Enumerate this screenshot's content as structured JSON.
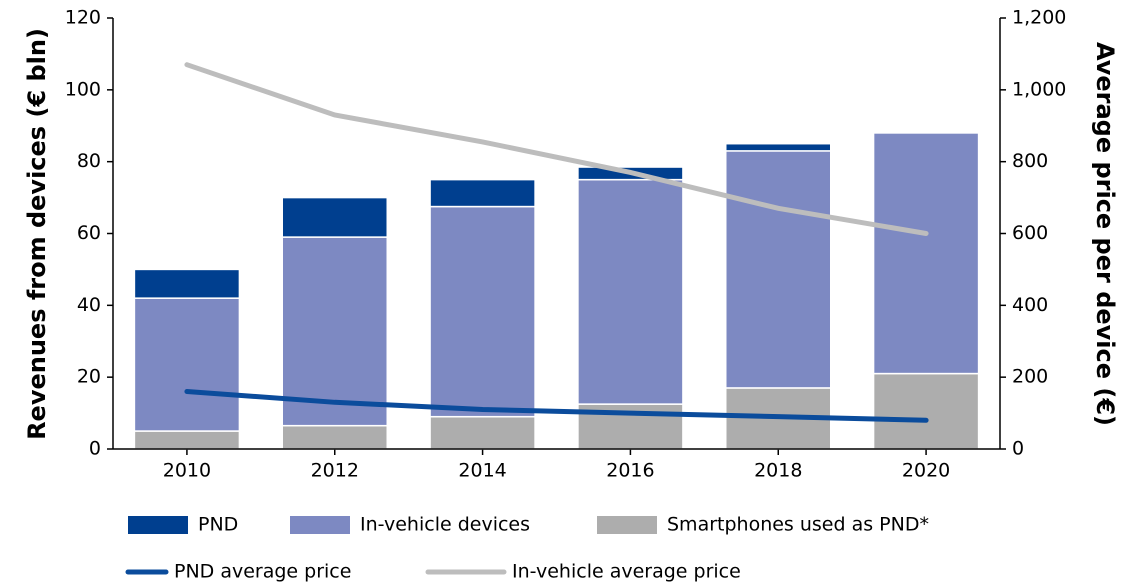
{
  "chart_data": {
    "type": "bar",
    "categories": [
      "2010",
      "2012",
      "2014",
      "2016",
      "2018",
      "2020"
    ],
    "y_label": "Revenues from devices (€ bln)",
    "y2_label": "Average price per device (€)",
    "ylim": [
      0,
      120
    ],
    "yticks": [
      0,
      20,
      40,
      60,
      80,
      100,
      120
    ],
    "y2lim": [
      0,
      1200
    ],
    "y2ticks": [
      0,
      200,
      400,
      600,
      800,
      {
        "value": 1000,
        "label": "1,000"
      },
      {
        "value": 1200,
        "label": "1,200"
      }
    ],
    "series": [
      {
        "name": "PND",
        "type": "bar",
        "color": "#003f8f",
        "values": [
          8,
          11,
          7.5,
          3.5,
          2,
          0
        ]
      },
      {
        "name": "In-vehicle devices",
        "type": "bar",
        "color": "#7d89c2",
        "values": [
          37,
          52.5,
          58.5,
          62.5,
          66,
          67
        ]
      },
      {
        "name": "Smartphones used as PND*",
        "type": "bar",
        "color": "#adadad",
        "values": [
          5,
          6.5,
          9,
          12.5,
          17,
          21
        ]
      },
      {
        "name": "PND average price",
        "type": "line",
        "axis": "y2",
        "color": "#0b4c9c",
        "values": [
          160,
          130,
          110,
          100,
          90,
          80
        ]
      },
      {
        "name": "In-vehicle average price",
        "type": "line",
        "axis": "y2",
        "color": "#bdbdbd",
        "values": [
          1070,
          930,
          855,
          770,
          670,
          600
        ]
      }
    ]
  }
}
